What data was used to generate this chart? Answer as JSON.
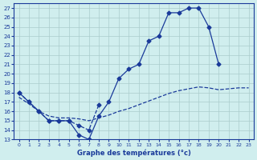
{
  "title": "Graphe des températures (°c)",
  "bg_color": "#d0eeee",
  "grid_color": "#aacccc",
  "line_color": "#1a3a9a",
  "xlim": [
    -0.5,
    23.5
  ],
  "ylim": [
    13,
    27.5
  ],
  "yticks": [
    13,
    14,
    15,
    16,
    17,
    18,
    19,
    20,
    21,
    22,
    23,
    24,
    25,
    26,
    27
  ],
  "xticks": [
    0,
    1,
    2,
    3,
    4,
    5,
    6,
    7,
    8,
    9,
    10,
    11,
    12,
    13,
    14,
    15,
    16,
    17,
    18,
    19,
    20,
    21,
    22,
    23
  ],
  "line1_x": [
    0,
    1,
    2,
    3,
    4,
    5,
    6,
    7,
    8,
    9,
    10,
    11,
    12,
    13,
    14,
    15,
    16,
    17,
    18,
    19,
    20,
    21,
    22,
    23
  ],
  "line1_y": [
    18.0,
    17.0,
    16.0,
    15.0,
    15.0,
    15.0,
    13.5,
    13.0,
    15.5,
    17.0,
    19.5,
    20.5,
    21.0,
    23.5,
    24.0,
    26.5,
    26.5,
    27.0,
    27.0,
    25.0,
    21.0,
    null,
    null,
    null
  ],
  "line2_x": [
    0,
    1,
    2,
    3,
    4,
    5,
    6,
    7,
    8,
    9,
    10,
    11,
    12,
    13,
    14,
    15,
    16,
    17,
    18,
    19,
    20,
    21,
    22,
    23
  ],
  "line2_y": [
    18.0,
    17.0,
    16.0,
    15.0,
    15.0,
    15.0,
    14.5,
    14.0,
    16.7,
    null,
    null,
    null,
    null,
    null,
    null,
    null,
    null,
    null,
    null,
    null,
    null,
    null,
    null,
    null
  ],
  "line3_x": [
    0,
    1,
    2,
    3,
    4,
    5,
    6,
    7,
    8,
    9,
    10,
    11,
    12,
    13,
    14,
    15,
    16,
    17,
    18,
    19,
    20,
    21,
    22,
    23
  ],
  "line3_y": [
    17.5,
    16.8,
    16.0,
    15.5,
    15.3,
    15.3,
    15.2,
    15.0,
    15.3,
    15.6,
    16.0,
    16.3,
    16.7,
    17.1,
    17.5,
    17.9,
    18.2,
    18.4,
    18.6,
    18.5,
    18.3,
    null,
    18.5,
    18.5
  ]
}
